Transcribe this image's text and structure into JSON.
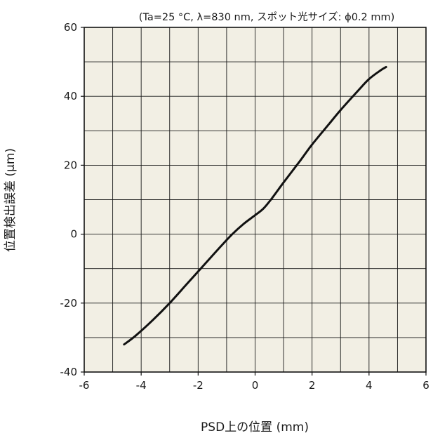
{
  "chart_data": {
    "type": "line",
    "title": "",
    "subtitle": "(Ta=25 °C, λ=830 nm, スポット光サイズ: ϕ0.2 mm)",
    "xlabel": "PSD上の位置 (mm)",
    "ylabel": "位置検出誤差 (µm)",
    "xlim": [
      -6,
      6
    ],
    "ylim": [
      -40,
      60
    ],
    "x_ticks": [
      -6,
      -4,
      -2,
      0,
      2,
      4,
      6
    ],
    "y_ticks": [
      -40,
      -20,
      0,
      20,
      40,
      60
    ],
    "x_tick_labels": [
      "-6",
      "-4",
      "-2",
      "0",
      "2",
      "4",
      "6"
    ],
    "y_tick_labels": [
      "-40",
      "-20",
      "0",
      "20",
      "40",
      "60"
    ],
    "x_grid_step": 1,
    "y_grid_step": 10,
    "grid": true,
    "legend": false,
    "colors": {
      "plot_background": "#f2efe4",
      "grid": "#1a1a1a",
      "line": "#111111"
    },
    "series": [
      {
        "x": [
          -4.6,
          -4.2,
          -3.6,
          -3.0,
          -2.4,
          -1.8,
          -1.2,
          -0.8,
          -0.4,
          0.0,
          0.3,
          0.6,
          1.0,
          1.6,
          2.0,
          2.6,
          3.0,
          3.6,
          4.0,
          4.4,
          4.6
        ],
        "y": [
          -32,
          -29.5,
          -25,
          -20,
          -14.5,
          -9,
          -3.5,
          0,
          3,
          5.5,
          7.5,
          10.5,
          15,
          21.5,
          26,
          32,
          36,
          41.5,
          45,
          47.5,
          48.5
        ]
      }
    ]
  }
}
